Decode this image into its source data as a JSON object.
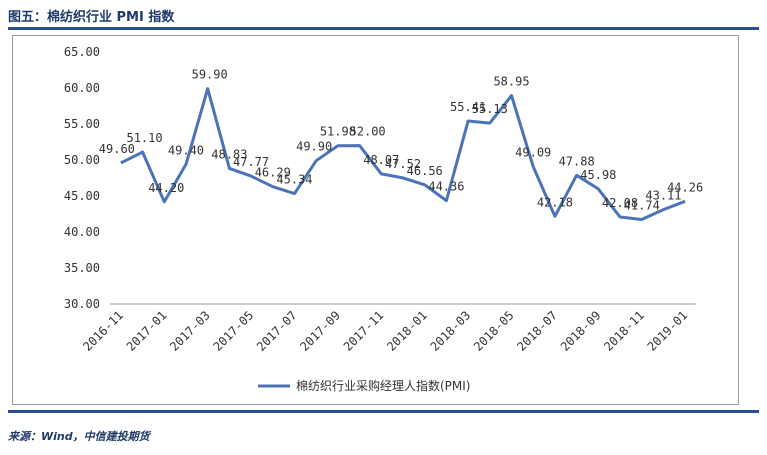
{
  "header": {
    "title": "图五：棉纺织行业 PMI 指数"
  },
  "footer": {
    "source": "来源：Wind，中信建投期货"
  },
  "colors": {
    "series": "#4a73b8",
    "rule": "#2d4f8e",
    "title": "#1f3a68"
  },
  "chart_data": {
    "type": "line",
    "title": "图五：棉纺织行业 PMI 指数",
    "xlabel": "",
    "ylabel": "",
    "ylim": [
      30,
      65
    ],
    "yticks": [
      30,
      35,
      40,
      45,
      50,
      55,
      60,
      65
    ],
    "ytick_labels": [
      "30.00",
      "35.00",
      "40.00",
      "45.00",
      "50.00",
      "55.00",
      "60.00",
      "65.00"
    ],
    "grid": false,
    "legend_position": "bottom-center",
    "categories": [
      "2016-11",
      "2016-12",
      "2017-01",
      "2017-02",
      "2017-03",
      "2017-04",
      "2017-05",
      "2017-06",
      "2017-07",
      "2017-08",
      "2017-09",
      "2017-10",
      "2017-11",
      "2017-12",
      "2018-01",
      "2018-02",
      "2018-03",
      "2018-04",
      "2018-05",
      "2018-06",
      "2018-07",
      "2018-08",
      "2018-09",
      "2018-10",
      "2018-11",
      "2018-12",
      "2019-01"
    ],
    "xtick_labels": [
      "2016-11",
      "",
      "2017-01",
      "",
      "2017-03",
      "",
      "2017-05",
      "",
      "2017-07",
      "",
      "2017-09",
      "",
      "2017-11",
      "",
      "2018-01",
      "",
      "2018-03",
      "",
      "2018-05",
      "",
      "2018-07",
      "",
      "2018-09",
      "",
      "2018-11",
      "",
      "2019-01"
    ],
    "series": [
      {
        "name": "棉纺织行业采购经理人指数(PMI)",
        "values": [
          49.6,
          51.1,
          44.2,
          49.4,
          59.9,
          48.83,
          47.77,
          46.29,
          45.34,
          49.9,
          51.98,
          52.0,
          48.07,
          47.52,
          46.56,
          44.36,
          55.41,
          55.13,
          58.95,
          49.09,
          42.18,
          47.88,
          45.98,
          42.08,
          41.74,
          43.11,
          44.26
        ],
        "labels": [
          "49.60",
          "51.10",
          "44.20",
          "49.40",
          "59.90",
          "48.83",
          "47.77",
          "46.29",
          "45.34",
          "49.90",
          "51.98",
          "52.00",
          "48.07",
          "47.52",
          "46.56",
          "44.36",
          "55.41",
          "55.13",
          "58.95",
          "49.09",
          "42.18",
          "47.88",
          "45.98",
          "42.08",
          "41.74",
          "43.11",
          "44.26"
        ]
      }
    ]
  }
}
